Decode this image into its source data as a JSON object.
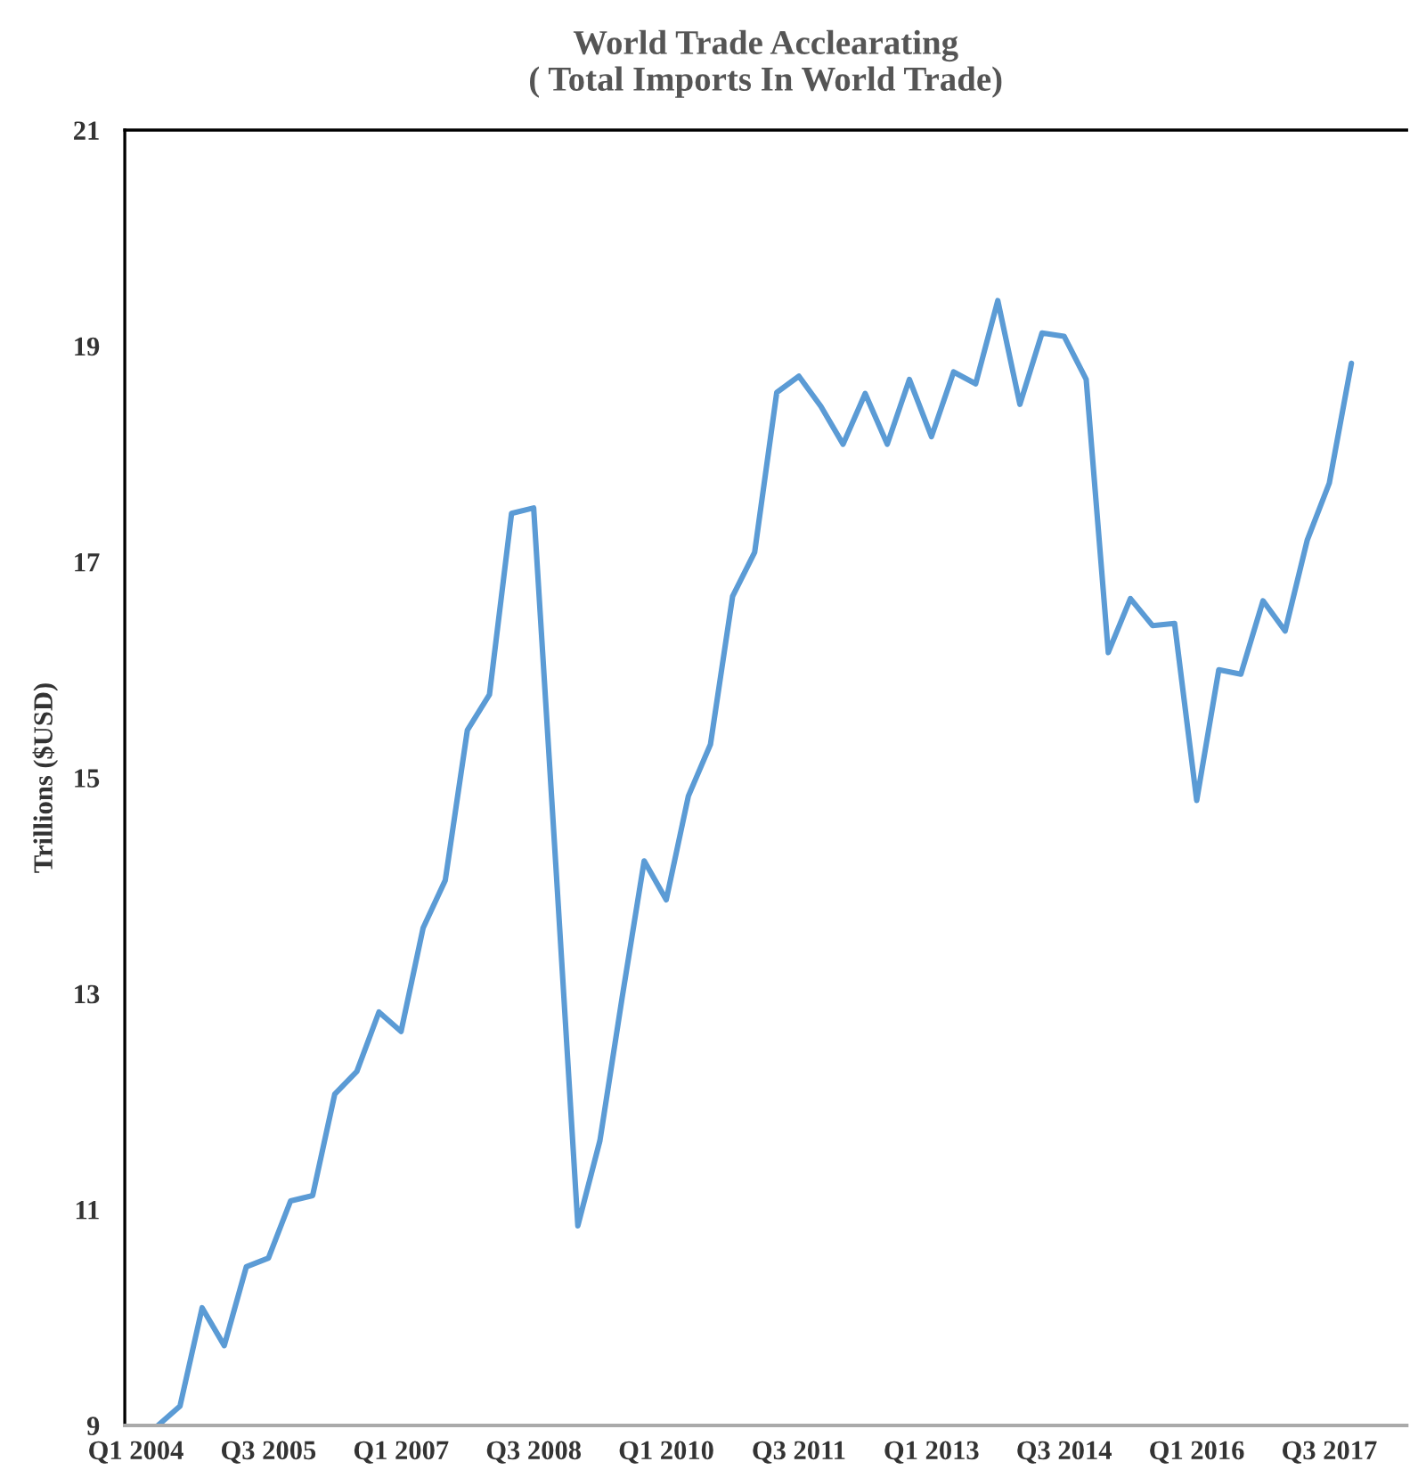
{
  "chart_data": {
    "type": "line",
    "title": "World Trade Acclearating\n( Total Imports In World Trade)",
    "ylabel": "Trillions ($USD)",
    "categories": [
      "Q1 2004",
      null,
      null,
      null,
      null,
      null,
      "Q3 2005",
      null,
      null,
      null,
      null,
      null,
      "Q1 2007",
      null,
      null,
      null,
      null,
      null,
      "Q3 2008",
      null,
      null,
      null,
      null,
      null,
      "Q1 2010",
      null,
      null,
      null,
      null,
      null,
      "Q3 2011",
      null,
      null,
      null,
      null,
      null,
      "Q1 2013",
      null,
      null,
      null,
      null,
      null,
      "Q3 2014",
      null,
      null,
      null,
      null,
      null,
      "Q1 2016",
      null,
      null,
      null,
      null,
      null,
      "Q3 2017",
      null,
      null,
      null
    ],
    "series": [
      {
        "color": "#5b9bd5",
        "values": [
          null,
          9.0,
          9.18,
          10.09,
          9.74,
          10.47,
          10.55,
          11.08,
          11.13,
          12.07,
          12.28,
          12.83,
          12.65,
          13.61,
          14.05,
          15.44,
          15.77,
          17.45,
          17.5,
          14.2,
          10.85,
          11.64,
          12.96,
          14.23,
          13.87,
          14.83,
          15.31,
          16.68,
          17.09,
          18.57,
          18.72,
          18.44,
          18.09,
          18.56,
          18.09,
          18.69,
          18.16,
          18.76,
          18.65,
          19.42,
          18.46,
          19.12,
          19.09,
          18.69,
          16.16,
          16.66,
          16.41,
          16.43,
          14.79,
          16.0,
          15.96,
          16.64,
          16.36,
          17.2,
          17.73,
          18.84,
          null,
          null
        ]
      }
    ],
    "ylim": [
      9,
      21
    ],
    "yticks": [
      9,
      11,
      13,
      15,
      17,
      19,
      21
    ],
    "grid": false,
    "legend": false,
    "marker": "none",
    "line_style": "solid"
  }
}
